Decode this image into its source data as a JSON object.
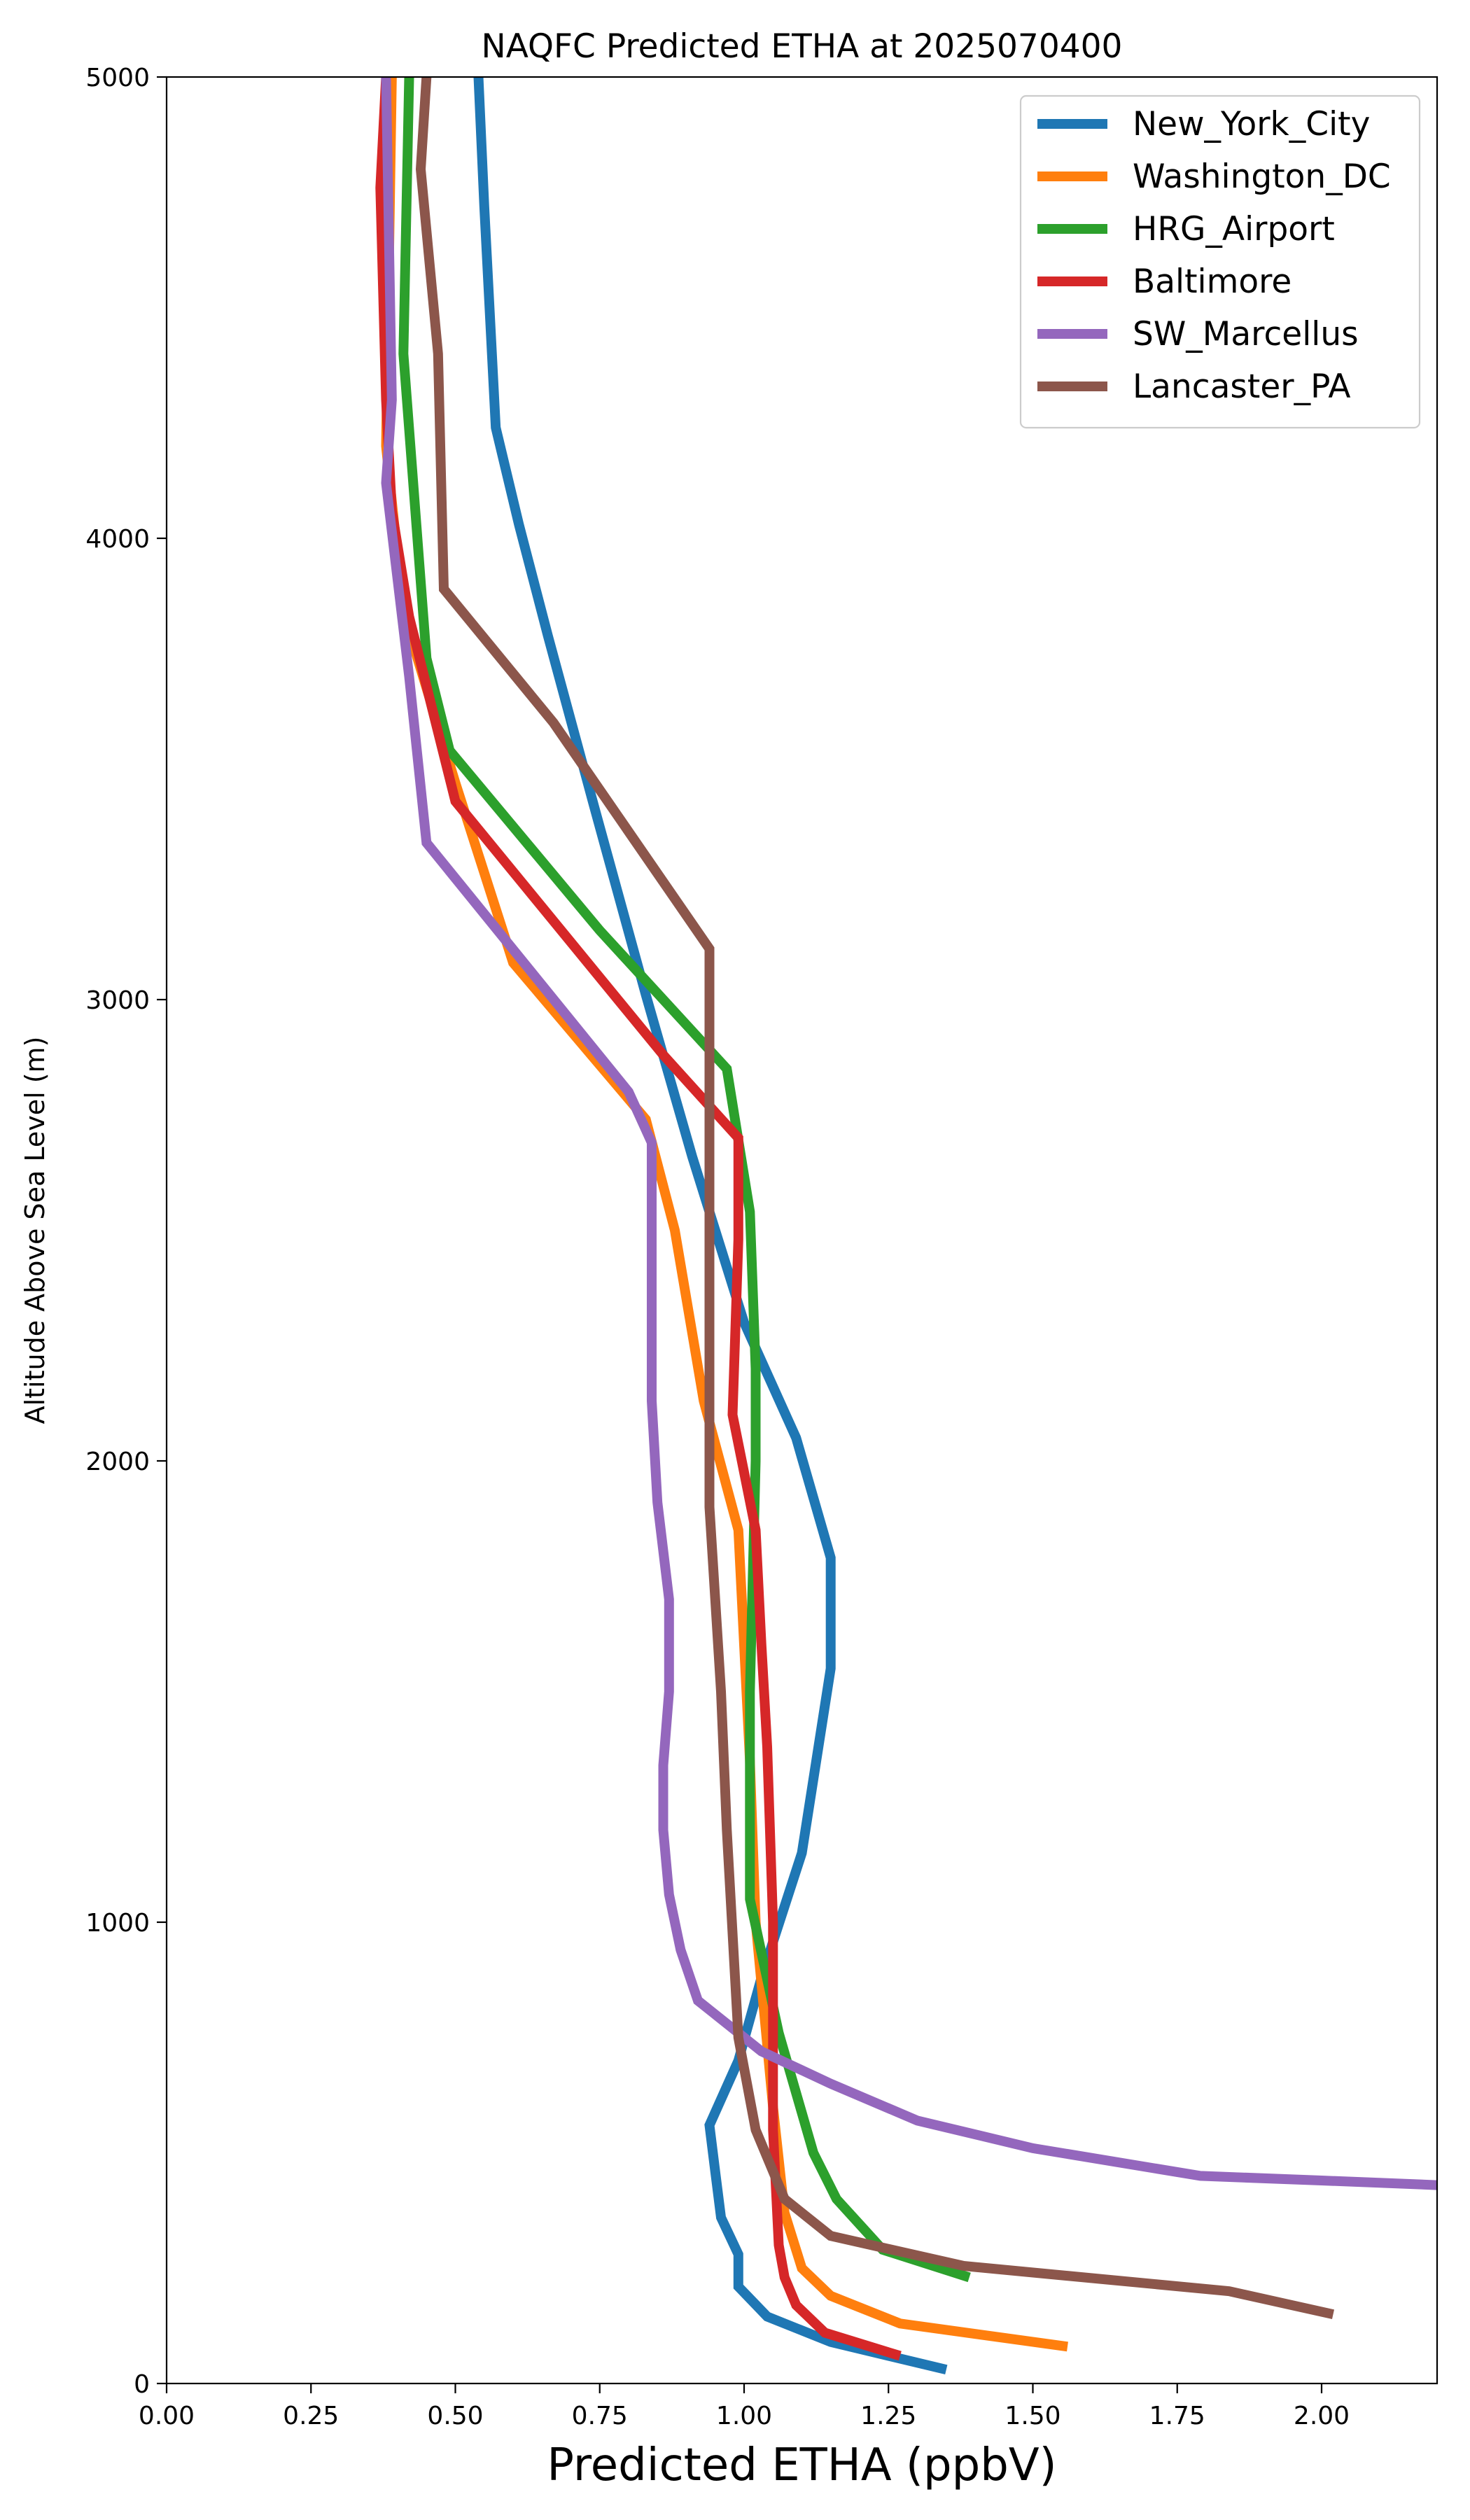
{
  "chart_data": {
    "type": "line",
    "title": "NAQFC Predicted ETHA at 2025070400",
    "xlabel": "Predicted ETHA (ppbV)",
    "ylabel": "Altitude Above Sea Level (m)",
    "xlim": [
      0,
      2.2
    ],
    "ylim": [
      0,
      5000
    ],
    "xticks": [
      0.0,
      0.25,
      0.5,
      0.75,
      1.0,
      1.25,
      1.5,
      1.75,
      2.0
    ],
    "xtick_labels": [
      "0.00",
      "0.25",
      "0.50",
      "0.75",
      "1.00",
      "1.25",
      "1.50",
      "1.75",
      "2.00"
    ],
    "yticks": [
      0,
      1000,
      2000,
      3000,
      4000,
      5000
    ],
    "ytick_labels": [
      "0",
      "1000",
      "2000",
      "3000",
      "4000",
      "5000"
    ],
    "grid": false,
    "legend_position": "top-right",
    "series": [
      {
        "name": "New_York_City",
        "color": "#1f77b4",
        "points": [
          [
            1.35,
            30
          ],
          [
            1.15,
            90
          ],
          [
            1.04,
            145
          ],
          [
            0.99,
            210
          ],
          [
            0.99,
            280
          ],
          [
            0.96,
            360
          ],
          [
            0.95,
            460
          ],
          [
            0.94,
            560
          ],
          [
            0.99,
            700
          ],
          [
            1.03,
            880
          ],
          [
            1.1,
            1150
          ],
          [
            1.15,
            1550
          ],
          [
            1.15,
            1790
          ],
          [
            1.09,
            2050
          ],
          [
            1.0,
            2300
          ],
          [
            0.91,
            2660
          ],
          [
            0.83,
            3010
          ],
          [
            0.74,
            3420
          ],
          [
            0.66,
            3790
          ],
          [
            0.61,
            4030
          ],
          [
            0.57,
            4240
          ],
          [
            0.55,
            4720
          ],
          [
            0.54,
            5000
          ]
        ]
      },
      {
        "name": "Washington_DC",
        "color": "#ff7f0e",
        "points": [
          [
            1.56,
            80
          ],
          [
            1.27,
            130
          ],
          [
            1.15,
            190
          ],
          [
            1.1,
            250
          ],
          [
            1.07,
            370
          ],
          [
            1.05,
            600
          ],
          [
            1.02,
            1000
          ],
          [
            1.01,
            1350
          ],
          [
            0.99,
            1850
          ],
          [
            0.93,
            2130
          ],
          [
            0.88,
            2500
          ],
          [
            0.83,
            2740
          ],
          [
            0.6,
            3080
          ],
          [
            0.5,
            3470
          ],
          [
            0.41,
            3840
          ],
          [
            0.38,
            4200
          ],
          [
            0.39,
            5000
          ]
        ]
      },
      {
        "name": "HRG_Airport",
        "color": "#2ca02c",
        "points": [
          [
            1.39,
            230
          ],
          [
            1.24,
            290
          ],
          [
            1.16,
            400
          ],
          [
            1.12,
            500
          ],
          [
            1.06,
            760
          ],
          [
            1.01,
            1050
          ],
          [
            1.01,
            1500
          ],
          [
            1.02,
            2000
          ],
          [
            1.02,
            2200
          ],
          [
            1.01,
            2540
          ],
          [
            0.97,
            2850
          ],
          [
            0.75,
            3150
          ],
          [
            0.49,
            3540
          ],
          [
            0.45,
            3740
          ],
          [
            0.41,
            4400
          ],
          [
            0.42,
            5000
          ]
        ]
      },
      {
        "name": "Baltimore",
        "color": "#d62728",
        "points": [
          [
            1.27,
            60
          ],
          [
            1.14,
            110
          ],
          [
            1.09,
            170
          ],
          [
            1.07,
            230
          ],
          [
            1.06,
            300
          ],
          [
            1.05,
            550
          ],
          [
            1.05,
            1000
          ],
          [
            1.04,
            1380
          ],
          [
            1.03,
            1600
          ],
          [
            1.02,
            1850
          ],
          [
            0.98,
            2100
          ],
          [
            0.99,
            2480
          ],
          [
            0.99,
            2700
          ],
          [
            0.86,
            2880
          ],
          [
            0.5,
            3430
          ],
          [
            0.42,
            3830
          ],
          [
            0.39,
            4060
          ],
          [
            0.38,
            4300
          ],
          [
            0.37,
            4760
          ],
          [
            0.38,
            5000
          ]
        ]
      },
      {
        "name": "SW_Marcellus",
        "color": "#9467bd",
        "points": [
          [
            2.2,
            430
          ],
          [
            2.0,
            440
          ],
          [
            1.79,
            450
          ],
          [
            1.5,
            510
          ],
          [
            1.3,
            570
          ],
          [
            1.15,
            650
          ],
          [
            1.03,
            720
          ],
          [
            0.92,
            830
          ],
          [
            0.89,
            940
          ],
          [
            0.87,
            1060
          ],
          [
            0.86,
            1200
          ],
          [
            0.86,
            1340
          ],
          [
            0.87,
            1500
          ],
          [
            0.87,
            1700
          ],
          [
            0.85,
            1910
          ],
          [
            0.84,
            2130
          ],
          [
            0.84,
            2690
          ],
          [
            0.8,
            2800
          ],
          [
            0.45,
            3340
          ],
          [
            0.42,
            3700
          ],
          [
            0.38,
            4120
          ],
          [
            0.39,
            4300
          ],
          [
            0.38,
            5000
          ]
        ]
      },
      {
        "name": "Lancaster_PA",
        "color": "#8c564b",
        "points": [
          [
            2.02,
            150
          ],
          [
            1.84,
            200
          ],
          [
            1.38,
            255
          ],
          [
            1.15,
            320
          ],
          [
            1.07,
            400
          ],
          [
            1.02,
            550
          ],
          [
            0.99,
            750
          ],
          [
            0.97,
            1200
          ],
          [
            0.96,
            1500
          ],
          [
            0.94,
            1900
          ],
          [
            0.94,
            2100
          ],
          [
            0.94,
            2400
          ],
          [
            0.94,
            2700
          ],
          [
            0.94,
            3110
          ],
          [
            0.67,
            3600
          ],
          [
            0.48,
            3890
          ],
          [
            0.47,
            4400
          ],
          [
            0.44,
            4800
          ],
          [
            0.45,
            5000
          ]
        ]
      }
    ]
  }
}
